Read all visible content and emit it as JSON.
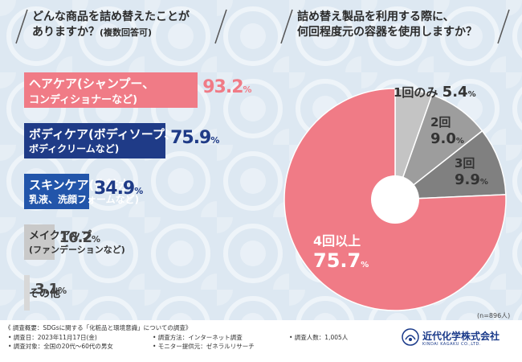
{
  "left_question": {
    "line1": "どんな商品を詰め替えたことが",
    "line2": "ありますか？",
    "line2_note": "(複数回答可)"
  },
  "right_question": {
    "line1": "詰め替え製品を利用する際に、",
    "line2": "何回程度元の容器を使用しますか？"
  },
  "colors": {
    "pink": "#f07b86",
    "navy": "#1f3b87",
    "blue": "#2255aa",
    "gray": "#c9c9c9",
    "gray_light": "#d8d8d8"
  },
  "chart_data": [
    {
      "type": "bar",
      "orientation": "horizontal",
      "categories": [
        {
          "line1": "ヘアケア(シャンプー、",
          "line2": "コンディショナーなど)"
        },
        {
          "line1": "ボディケア(ボディソープ、",
          "line2": "ボディクリームなど)"
        },
        {
          "line1": "スキンケア(化粧水、",
          "line2": "乳液、洗顔フォームなど)"
        },
        {
          "line1": "メイクアップ",
          "line2": "(ファンデーションなど)"
        },
        {
          "line1": "その他",
          "line2": ""
        }
      ],
      "values": [
        93.2,
        75.9,
        34.9,
        16.2,
        3.1
      ],
      "value_labels": [
        {
          "num": "93.2",
          "unit": "%"
        },
        {
          "num": "75.9",
          "unit": "%"
        },
        {
          "num": "34.9",
          "unit": "%"
        },
        {
          "num": "16.2",
          "unit": "%"
        },
        {
          "num": "3.1",
          "unit": "%"
        }
      ],
      "xlim": [
        0,
        100
      ]
    },
    {
      "type": "pie",
      "style": "donut",
      "labels": [
        "1回のみ",
        "2回",
        "3回",
        "4回以上"
      ],
      "values": [
        5.4,
        9.0,
        9.9,
        75.7
      ],
      "value_labels": [
        {
          "num": "5.4",
          "unit": "%"
        },
        {
          "num": "9.0",
          "unit": "%"
        },
        {
          "num": "9.9",
          "unit": "%"
        },
        {
          "num": "75.7",
          "unit": "%"
        }
      ],
      "slice_colors": [
        "#c4c4c4",
        "#9d9d9d",
        "#808080",
        "#f07b86"
      ],
      "sample_note": "(n=896人)"
    }
  ],
  "footer": {
    "overview": "《 調査概要：SDGsに関する「化粧品と環境意識」についての調査》",
    "date": "• 調査日：2023年11月17日(金)",
    "target": "• 調査対象：全国の20代～60代の男女",
    "method": "• 調査方法：インターネット調査",
    "provider": "• モニター提供元：ゼネラルリサーチ",
    "count": "• 調査人数：1,005人",
    "company": "近代化学株式会社",
    "company_en": "KINDAI KAGAKU CO.,LTD."
  }
}
